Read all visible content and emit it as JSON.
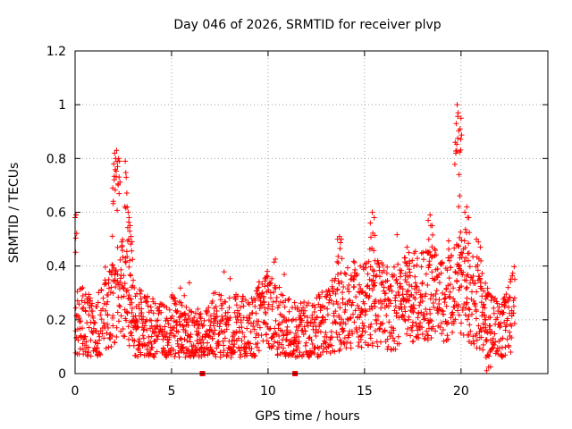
{
  "chart_data": {
    "type": "scatter",
    "title": "Day 046 of 2026, SRMTID for receiver plvp",
    "xlabel": "GPS time / hours",
    "ylabel": "SRMTID / TECUs",
    "xlim": [
      0,
      24.5
    ],
    "ylim": [
      0,
      1.2
    ],
    "xticks": [
      0,
      5,
      10,
      15,
      20
    ],
    "xtick_labels": [
      "0",
      "5",
      "10",
      "15",
      "20"
    ],
    "yticks": [
      0,
      0.2,
      0.4,
      0.6,
      0.8,
      1,
      1.2
    ],
    "ytick_labels": [
      "0",
      "0.2",
      "0.4",
      "0.6",
      "0.8",
      "1",
      "1.2"
    ],
    "grid": true,
    "marker": "plus",
    "series_color": "#ff0000",
    "baseline_profile": {
      "hours": [
        0,
        0.5,
        1,
        1.5,
        2,
        2.5,
        3,
        3.5,
        4,
        4.5,
        5,
        5.5,
        6,
        6.5,
        7,
        7.5,
        8,
        8.5,
        9,
        9.5,
        10,
        10.5,
        11,
        11.5,
        12,
        12.5,
        13,
        13.5,
        14,
        14.5,
        15,
        15.5,
        16,
        16.5,
        17,
        17.5,
        18,
        18.5,
        19,
        19.5,
        20,
        20.5,
        21,
        21.5,
        22,
        22.5,
        22.8
      ],
      "srmtid": [
        0.22,
        0.18,
        0.15,
        0.2,
        0.28,
        0.32,
        0.22,
        0.17,
        0.16,
        0.15,
        0.17,
        0.15,
        0.13,
        0.12,
        0.14,
        0.17,
        0.16,
        0.17,
        0.15,
        0.2,
        0.24,
        0.18,
        0.16,
        0.14,
        0.15,
        0.17,
        0.2,
        0.22,
        0.24,
        0.26,
        0.25,
        0.27,
        0.25,
        0.24,
        0.27,
        0.28,
        0.3,
        0.3,
        0.28,
        0.3,
        0.33,
        0.28,
        0.24,
        0.17,
        0.15,
        0.19,
        0.26
      ]
    },
    "peaks": [
      {
        "hours": [
          0.0,
          0.05
        ],
        "srmtid": [
          0.58,
          0.59
        ]
      },
      {
        "hours": [
          1.95,
          2.0,
          2.05,
          2.1,
          2.15,
          2.2,
          2.25,
          2.3
        ],
        "srmtid": [
          0.69,
          0.78,
          0.82,
          0.8,
          0.83,
          0.77,
          0.8,
          0.79
        ]
      },
      {
        "hours": [
          2.6,
          2.65,
          2.7,
          2.75,
          2.8,
          2.85,
          2.9,
          2.95
        ],
        "srmtid": [
          0.79,
          0.73,
          0.62,
          0.6,
          0.58,
          0.55,
          0.51,
          0.49
        ]
      },
      {
        "hours": [
          13.6,
          13.7,
          13.8
        ],
        "srmtid": [
          0.5,
          0.51,
          0.5
        ]
      },
      {
        "hours": [
          15.3,
          15.4,
          15.5
        ],
        "srmtid": [
          0.56,
          0.6,
          0.58
        ]
      },
      {
        "hours": [
          17.1,
          17.2,
          17.3
        ],
        "srmtid": [
          0.43,
          0.47,
          0.45
        ]
      },
      {
        "hours": [
          18.3,
          18.4,
          18.5
        ],
        "srmtid": [
          0.57,
          0.59,
          0.55
        ]
      },
      {
        "hours": [
          19.7,
          19.75,
          19.8,
          19.85,
          19.9,
          19.95,
          20.0
        ],
        "srmtid": [
          0.86,
          0.93,
          1.0,
          0.97,
          0.74,
          0.91,
          0.95
        ]
      },
      {
        "hours": [
          20.2,
          20.3,
          20.4
        ],
        "srmtid": [
          0.6,
          0.62,
          0.58
        ]
      },
      {
        "hours": [
          20.8,
          20.9,
          21.0
        ],
        "srmtid": [
          0.5,
          0.49,
          0.47
        ]
      },
      {
        "hours": [
          21.3,
          21.4,
          21.5
        ],
        "srmtid": [
          0.06,
          0.07,
          0.08
        ]
      }
    ],
    "zero_points": {
      "hours": [
        6.6,
        11.4
      ],
      "srmtid": [
        0.0,
        0.0
      ]
    }
  }
}
